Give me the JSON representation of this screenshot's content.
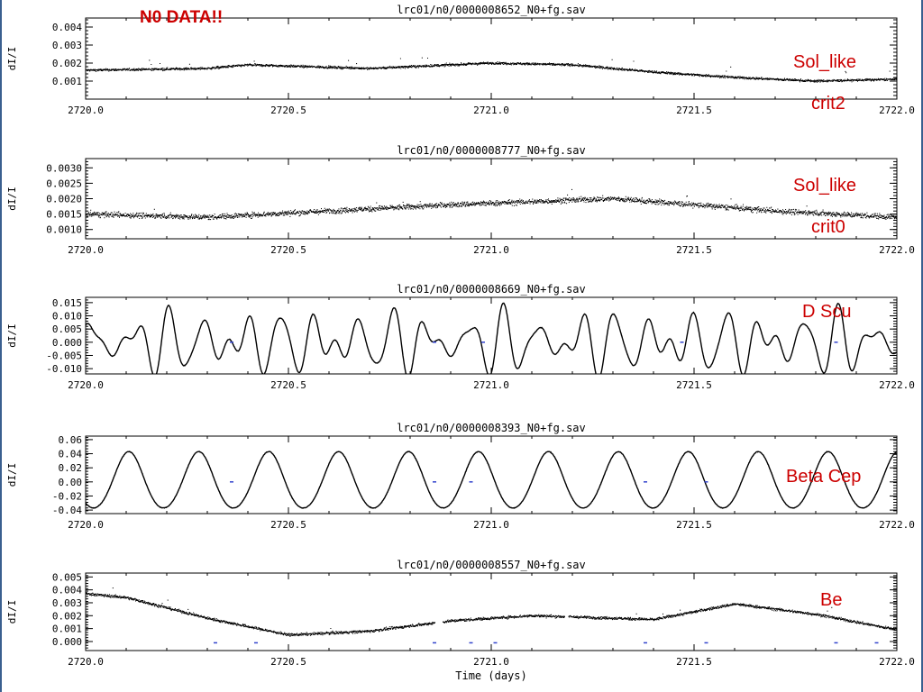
{
  "header": {
    "text": "N0 DATA!!"
  },
  "axis": {
    "xlabel": "Time (days)",
    "ylabel": "dI/I",
    "xticks": [
      "2720.0",
      "2720.5",
      "2721.0",
      "2721.5",
      "2722.0"
    ]
  },
  "colors": {
    "annotation": "#cc0000",
    "data": "#000000",
    "flag": "#3344cc",
    "border": "#3a5f8f"
  },
  "chart_data": [
    {
      "type": "scatter",
      "title": "lrc01/n0/0000008652_N0+fg.sav",
      "ylabel": "dI/I",
      "xlim": [
        2720.0,
        2722.0
      ],
      "ylim": [
        0.0,
        0.0045
      ],
      "yticks": [
        "0.001",
        "0.002",
        "0.003",
        "0.004"
      ],
      "ytick_values": [
        0.001,
        0.002,
        0.003,
        0.004
      ],
      "annotations": [
        "Sol_like",
        "crit2"
      ],
      "trend": {
        "x": [
          2720.0,
          2720.3,
          2720.4,
          2720.7,
          2721.0,
          2721.2,
          2721.4,
          2721.6,
          2721.8,
          2722.0
        ],
        "y": [
          0.0016,
          0.0017,
          0.0019,
          0.0017,
          0.002,
          0.0019,
          0.0015,
          0.0012,
          0.001,
          0.0011
        ]
      }
    },
    {
      "type": "scatter",
      "title": "lrc01/n0/0000008777_N0+fg.sav",
      "ylabel": "dI/I",
      "xlim": [
        2720.0,
        2722.0
      ],
      "ylim": [
        0.0007,
        0.0033
      ],
      "yticks": [
        "0.0010",
        "0.0015",
        "0.0020",
        "0.0025",
        "0.0030"
      ],
      "ytick_values": [
        0.001,
        0.0015,
        0.002,
        0.0025,
        0.003
      ],
      "annotations": [
        "Sol_like",
        "crit0"
      ],
      "trend": {
        "x": [
          2720.0,
          2720.3,
          2720.6,
          2720.9,
          2721.1,
          2721.3,
          2721.5,
          2721.7,
          2722.0
        ],
        "y": [
          0.0015,
          0.0014,
          0.0016,
          0.0018,
          0.0019,
          0.002,
          0.0018,
          0.0016,
          0.0014
        ]
      }
    },
    {
      "type": "line",
      "title": "lrc01/n0/0000008669_N0+fg.sav",
      "ylabel": "dI/I",
      "xlim": [
        2720.0,
        2722.0
      ],
      "ylim": [
        -0.012,
        0.017
      ],
      "yticks": [
        "-0.010",
        "-0.005",
        "0.000",
        "0.005",
        "0.010",
        "0.015"
      ],
      "ytick_values": [
        -0.01,
        -0.005,
        0.0,
        0.005,
        0.01,
        0.015
      ],
      "annotations": [
        "D Scu"
      ],
      "signal": {
        "kind": "multi-periodic",
        "components": [
          [
            0.007,
            10.9
          ],
          [
            0.005,
            14.6
          ],
          [
            0.003,
            19.3
          ]
        ]
      }
    },
    {
      "type": "line",
      "title": "lrc01/n0/0000008393_N0+fg.sav",
      "ylabel": "dI/I",
      "xlim": [
        2720.0,
        2722.0
      ],
      "ylim": [
        -0.045,
        0.065
      ],
      "yticks": [
        "-0.04",
        "-0.02",
        "0.00",
        "0.02",
        "0.04",
        "0.06"
      ],
      "ytick_values": [
        -0.04,
        -0.02,
        0.0,
        0.02,
        0.04,
        0.06
      ],
      "annotations": [
        "Beta Cep"
      ],
      "signal": {
        "kind": "periodic",
        "components": [
          [
            0.04,
            5.8
          ]
        ]
      },
      "peaks_x": [
        2720.12,
        2720.29,
        2720.47,
        2720.65,
        2720.82,
        2721.0,
        2721.18,
        2721.38,
        2721.57,
        2721.77,
        2721.95
      ]
    },
    {
      "type": "scatter",
      "title": "lrc01/n0/0000008557_N0+fg.sav",
      "ylabel": "dI/I",
      "xlim": [
        2720.0,
        2722.0
      ],
      "ylim": [
        -0.0007,
        0.0053
      ],
      "yticks": [
        "0.000",
        "0.001",
        "0.002",
        "0.003",
        "0.004",
        "0.005"
      ],
      "ytick_values": [
        0.0,
        0.001,
        0.002,
        0.003,
        0.004,
        0.005
      ],
      "annotations": [
        "Be"
      ],
      "trend": {
        "x": [
          2720.0,
          2720.1,
          2720.3,
          2720.5,
          2720.7,
          2720.9,
          2721.1,
          2721.4,
          2721.6,
          2721.8,
          2722.0
        ],
        "y": [
          0.0037,
          0.0034,
          0.0018,
          0.0005,
          0.0008,
          0.0016,
          0.002,
          0.0017,
          0.0029,
          0.0021,
          0.0009
        ]
      }
    }
  ]
}
